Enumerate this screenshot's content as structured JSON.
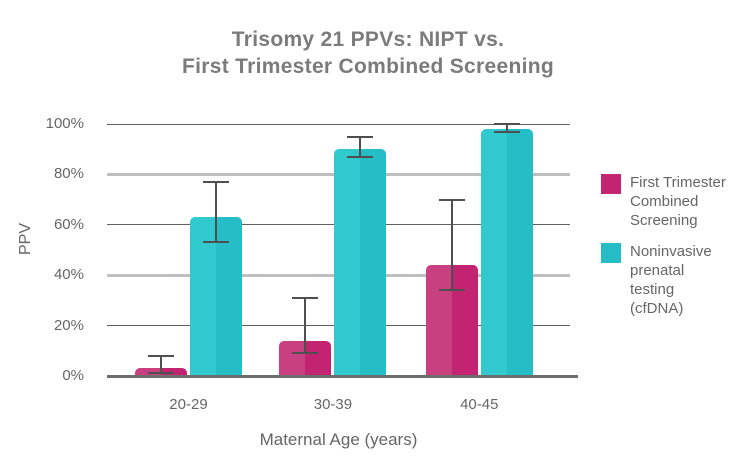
{
  "palette": {
    "background": "#ffffff",
    "title_text": "#7b7b7b",
    "axis_text": "#666666",
    "grid_dark": "#606060",
    "grid_light": "#c0c0c0",
    "baseline": "#6e6e6e",
    "error_bar": "#4f4f4f",
    "fcs_dark": "#C32472",
    "fcs_light": "#C94080",
    "nipt_dark": "#25BEC6",
    "nipt_light": "#2FC9CE"
  },
  "chart_data": {
    "type": "bar",
    "title": "Trisomy 21 PPVs: NIPT vs. First Trimester Combined Screening",
    "title_lines": [
      "Trisomy 21 PPVs: NIPT vs.",
      "First Trimester Combined Screening"
    ],
    "xlabel": "Maternal Age (years)",
    "ylabel": "PPV",
    "categories": [
      "20-29",
      "30-39",
      "40-45"
    ],
    "series": [
      {
        "key": "fcs",
        "name": "First Trimester Combined Screening",
        "color_dark": "#C32472",
        "color_light": "#C94080",
        "values": [
          3,
          14,
          44
        ],
        "error_low": [
          1,
          9,
          34
        ],
        "error_high": [
          8,
          31,
          70
        ]
      },
      {
        "key": "nipt",
        "name": "Noninvasive prenatal testing (cfDNA)",
        "color_dark": "#25BEC6",
        "color_light": "#2FC9CE",
        "values": [
          63,
          90,
          98
        ],
        "error_low": [
          53,
          87,
          97
        ],
        "error_high": [
          77,
          95,
          100
        ]
      }
    ],
    "ylim": [
      0,
      100
    ],
    "yticks": [
      {
        "value": 0,
        "label": "0%",
        "weight": "dark"
      },
      {
        "value": 20,
        "label": "20%",
        "weight": "dark"
      },
      {
        "value": 40,
        "label": "40%",
        "weight": "light"
      },
      {
        "value": 60,
        "label": "60%",
        "weight": "dark"
      },
      {
        "value": 80,
        "label": "80%",
        "weight": "light"
      },
      {
        "value": 100,
        "label": "100%",
        "weight": "dark"
      }
    ],
    "grid": true,
    "error_bars": true,
    "legend_position": "right",
    "group_centers_frac": [
      0.176,
      0.488,
      0.804
    ]
  }
}
